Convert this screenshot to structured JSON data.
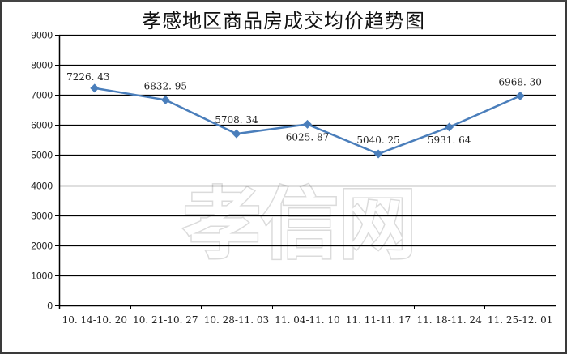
{
  "chart_data": {
    "type": "line",
    "title": "孝感地区商品房成交均价趋势图",
    "xlabel": "",
    "ylabel": "",
    "categories": [
      "10.14-10.20",
      "10.21-10.27",
      "10.28-11.03",
      "11.04-11.10",
      "11.11-11.17",
      "11.18-11.24",
      "11.25-12.01"
    ],
    "series": [
      {
        "name": "成交均价",
        "values": [
          7226.43,
          6832.95,
          5708.34,
          6025.87,
          5040.25,
          5931.64,
          6968.3
        ],
        "labels": [
          "7226.43",
          "6832.95",
          "5708.34",
          "6025.87",
          "5040.25",
          "5931.64",
          "6968.30"
        ],
        "color": "#4a7ebb",
        "marker": "diamond"
      }
    ],
    "ylim": [
      0,
      9000
    ],
    "yticks": [
      0,
      1000,
      2000,
      3000,
      4000,
      5000,
      6000,
      7000,
      8000,
      9000
    ],
    "grid": true,
    "legend": "none"
  },
  "watermark": "孝信网",
  "colors": {
    "line": "#4a7ebb",
    "grid": "#000000",
    "text": "#222222"
  }
}
